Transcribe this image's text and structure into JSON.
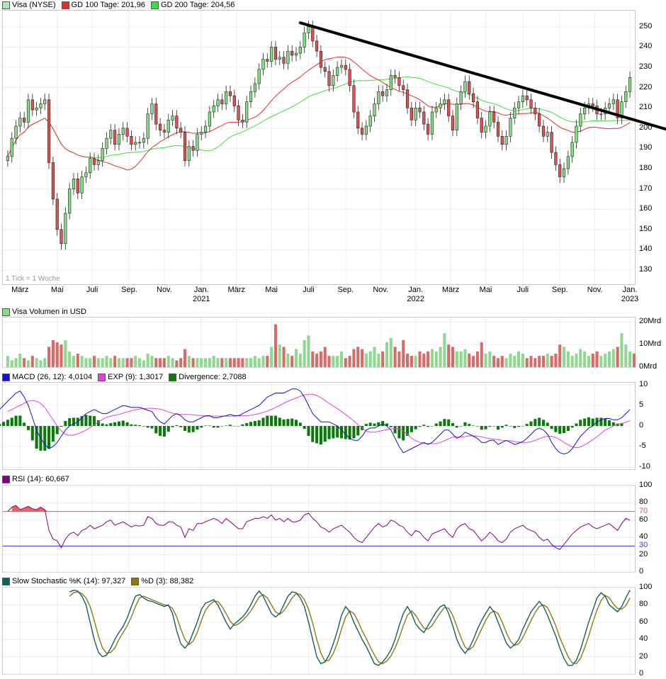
{
  "legends": {
    "price": [
      {
        "label": "Visa (NYSE)",
        "color": "#b4e6b4"
      },
      {
        "label": "GD 100 Tage: 201,96",
        "color": "#e03030"
      },
      {
        "label": "GD 200 Tage: 204,56",
        "color": "#3ce03c"
      }
    ],
    "volume": [
      {
        "label": "Visa Volumen in USD",
        "color": "#8fd88f"
      }
    ],
    "macd": [
      {
        "label": "MACD (26, 12): 4,0104",
        "color": "#1414c8"
      },
      {
        "label": "EXP (9): 1,3017",
        "color": "#e040e0"
      },
      {
        "label": "Divergence: 2,7088",
        "color": "#0a7a0a"
      }
    ],
    "rsi": [
      {
        "label": "RSI (14): 60,667",
        "color": "#800080"
      }
    ],
    "stoch": [
      {
        "label": "Slow Stochastic %K (14): 97,327",
        "color": "#106060"
      },
      {
        "label": "%D (3): 88,382",
        "color": "#8a7a10"
      }
    ]
  },
  "tick_note": "1 Tick = 1 Woche",
  "colors": {
    "up": "#7ee07e",
    "down": "#e05050",
    "ma100": "#e03030",
    "ma200": "#3ce03c",
    "trend": "#000000",
    "macd": "#1414c8",
    "exp": "#e040e0",
    "div": "#0a7a0a",
    "rsi": "#800080",
    "k": "#106060",
    "d": "#8a7a10",
    "vol_up": "#8fd88f",
    "vol_down": "#d86a6a",
    "line70": "#e05050",
    "line30": "#3030e0"
  },
  "chart_data": [
    {
      "id": "price",
      "type": "candlestick",
      "ylim": [
        123,
        258
      ],
      "y_ticks": [
        130,
        140,
        150,
        160,
        170,
        180,
        190,
        200,
        210,
        220,
        230,
        240,
        250
      ],
      "x_ticks": [
        {
          "label": "März",
          "week": 3
        },
        {
          "label": "Mai",
          "week": 12
        },
        {
          "label": "Juli",
          "week": 20.5
        },
        {
          "label": "Sep.",
          "week": 29.5
        },
        {
          "label": "Nov.",
          "week": 38
        },
        {
          "label": "Jan.",
          "sub": "2021",
          "week": 47
        },
        {
          "label": "März",
          "week": 55.5
        },
        {
          "label": "Mai",
          "week": 64
        },
        {
          "label": "Juli",
          "week": 73
        },
        {
          "label": "Sep.",
          "week": 82
        },
        {
          "label": "Nov.",
          "week": 90.5
        },
        {
          "label": "Jan.",
          "sub": "2022",
          "week": 99
        },
        {
          "label": "März",
          "week": 107.5
        },
        {
          "label": "Mai",
          "week": 116
        },
        {
          "label": "Juli",
          "week": 125
        },
        {
          "label": "Sep.",
          "week": 134
        },
        {
          "label": "Nov.",
          "week": 142.5
        },
        {
          "label": "Jan.",
          "sub": "2023",
          "week": 151
        }
      ],
      "closes": [
        186,
        195,
        201,
        205,
        203,
        214,
        209,
        210,
        212,
        214,
        183,
        165,
        150,
        143,
        158,
        170,
        175,
        168,
        176,
        178,
        185,
        182,
        184,
        190,
        195,
        199,
        192,
        197,
        200,
        196,
        192,
        193,
        193,
        195,
        207,
        212,
        202,
        199,
        198,
        204,
        206,
        200,
        198,
        184,
        191,
        189,
        197,
        198,
        201,
        208,
        211,
        214,
        212,
        218,
        216,
        211,
        204,
        203,
        213,
        218,
        222,
        229,
        234,
        233,
        240,
        234,
        235,
        232,
        238,
        236,
        237,
        240,
        247,
        250,
        243,
        238,
        230,
        228,
        221,
        226,
        230,
        231,
        229,
        221,
        208,
        200,
        197,
        201,
        206,
        212,
        218,
        216,
        219,
        226,
        225,
        221,
        219,
        210,
        204,
        210,
        208,
        202,
        197,
        208,
        210,
        212,
        214,
        206,
        199,
        212,
        218,
        223,
        217,
        213,
        205,
        198,
        201,
        208,
        203,
        196,
        192,
        196,
        205,
        210,
        213,
        216,
        214,
        210,
        207,
        201,
        196,
        198,
        188,
        182,
        176,
        180,
        186,
        193,
        201,
        207,
        210,
        212,
        211,
        207,
        207,
        210,
        212,
        214,
        205,
        213,
        218,
        225
      ]
    },
    {
      "id": "volume",
      "type": "bar",
      "unit": "Mrd",
      "ylim": [
        0,
        22
      ],
      "y_ticks": [
        {
          "v": 0,
          "label": "0Mrd"
        },
        {
          "v": 10,
          "label": "10Mrd"
        },
        {
          "v": 20,
          "label": "20Mrd"
        }
      ],
      "values": [
        5,
        3,
        4,
        6,
        4,
        3,
        5,
        4,
        3,
        4,
        9,
        12,
        11,
        10,
        12,
        7,
        5,
        6,
        5,
        4,
        4,
        5,
        4,
        4,
        5,
        4,
        5,
        4,
        4,
        4,
        4,
        5,
        4,
        3,
        6,
        5,
        4,
        4,
        4,
        5,
        4,
        3,
        4,
        8,
        5,
        4,
        4,
        4,
        4,
        4,
        5,
        4,
        4,
        4,
        4,
        4,
        4,
        4,
        4,
        4,
        5,
        4,
        5,
        5,
        9,
        19,
        10,
        9,
        6,
        5,
        8,
        6,
        12,
        14,
        7,
        6,
        7,
        9,
        5,
        5,
        5,
        7,
        4,
        5,
        8,
        9,
        8,
        6,
        7,
        9,
        6,
        7,
        11,
        13,
        9,
        7,
        12,
        6,
        5,
        5,
        7,
        6,
        7,
        8,
        7,
        9,
        15,
        10,
        9,
        7,
        7,
        8,
        6,
        5,
        7,
        11,
        6,
        7,
        5,
        4,
        5,
        4,
        6,
        5,
        7,
        6,
        4,
        5,
        4,
        5,
        5,
        6,
        5,
        6,
        10,
        9,
        7,
        5,
        6,
        8,
        7,
        5,
        6,
        7,
        5,
        6,
        7,
        8,
        9,
        15,
        10,
        7,
        6
      ]
    },
    {
      "id": "macd",
      "type": "line+bar",
      "ylim": [
        -10.5,
        10.5
      ],
      "y_ticks": [
        -10,
        -5,
        0,
        5,
        10
      ],
      "macd": [
        4,
        5,
        6,
        7,
        8,
        8.5,
        7,
        5,
        2,
        -1,
        -3,
        -4.5,
        -5.5,
        -5,
        -4,
        -2.5,
        -1,
        0,
        0.5,
        1,
        2,
        3,
        3.5,
        4,
        3.5,
        3,
        3,
        3.5,
        4,
        4.5,
        5,
        4.8,
        4.5,
        4.5,
        4.5,
        4.2,
        3.8,
        3.5,
        2,
        1,
        0.5,
        1.5,
        2.5,
        3,
        2.5,
        1.5,
        1,
        1,
        1.5,
        2,
        2.5,
        2.5,
        2,
        2,
        2.3,
        2.5,
        2.8,
        2.5,
        2.5,
        3,
        3.5,
        4,
        4.5,
        5,
        6,
        7,
        7.5,
        8,
        8,
        8,
        8.5,
        9,
        9,
        8.5,
        7,
        5,
        3,
        2,
        1,
        1,
        1,
        0.5,
        0,
        -1,
        -2,
        -3,
        -3.5,
        -3.5,
        -2.5,
        -1,
        -0.5,
        -0.5,
        0,
        0.5,
        0,
        -1,
        -3,
        -5,
        -6.5,
        -6,
        -5.5,
        -5,
        -4.5,
        -4,
        -4.5,
        -4,
        -3,
        -2,
        -1,
        -1,
        -2,
        -3,
        -2.5,
        -1.5,
        -2,
        -2.5,
        -3,
        -4,
        -4,
        -3.5,
        -3.5,
        -4.5,
        -4,
        -3.5,
        -4,
        -4.5,
        -4.2,
        -3.8,
        -3,
        -2,
        -1,
        -0.5,
        -1,
        -2,
        -4,
        -5.5,
        -6.5,
        -6.8,
        -6.5,
        -5.5,
        -4,
        -2.5,
        -1.5,
        -0.5,
        0,
        1,
        1.5,
        1.8,
        1.8,
        1.5,
        1.5,
        2,
        3,
        4
      ],
      "exp": [
        3.5,
        4,
        4.5,
        5,
        5.5,
        6,
        6.2,
        6,
        5.5,
        4.5,
        3,
        1.5,
        0,
        -1.2,
        -2,
        -2.3,
        -2.2,
        -1.9,
        -1.5,
        -1,
        -0.4,
        0.3,
        1,
        1.6,
        2.1,
        2.4,
        2.6,
        2.8,
        3.1,
        3.4,
        3.7,
        3.9,
        4.1,
        4.2,
        4.3,
        4.3,
        4.2,
        4.1,
        3.8,
        3.4,
        3.1,
        2.9,
        2.8,
        2.8,
        2.8,
        2.7,
        2.6,
        2.5,
        2.4,
        2.4,
        2.4,
        2.4,
        2.4,
        2.4,
        2.4,
        2.4,
        2.5,
        2.5,
        2.5,
        2.6,
        2.8,
        3,
        3.3,
        3.6,
        4,
        4.5,
        5,
        5.5,
        6,
        6.4,
        6.8,
        7.2,
        7.5,
        7.7,
        7.7,
        7.4,
        6.9,
        6.2,
        5.5,
        4.8,
        4.2,
        3.5,
        2.8,
        2,
        1.2,
        0.3,
        -0.5,
        -1.2,
        -1.5,
        -1.5,
        -1.3,
        -1.1,
        -0.9,
        -0.7,
        -0.6,
        -0.7,
        -1.2,
        -2,
        -3,
        -3.6,
        -4,
        -4.2,
        -4.3,
        -4.3,
        -4.3,
        -4,
        -3.6,
        -3.1,
        -2.7,
        -2.6,
        -2.7,
        -2.6,
        -2.4,
        -2.4,
        -2.5,
        -2.6,
        -2.9,
        -3.1,
        -3.2,
        -3.3,
        -3.5,
        -3.6,
        -3.6,
        -3.8,
        -3.9,
        -4,
        -4,
        -3.8,
        -3.5,
        -3.1,
        -2.7,
        -2.5,
        -2.5,
        -2.8,
        -3.3,
        -4,
        -4.6,
        -5.1,
        -5.3,
        -5.1,
        -4.6,
        -4,
        -3.3,
        -2.6,
        -1.8,
        -1,
        -0.5,
        0,
        0.4,
        0.6,
        0.9,
        1.3
      ]
    },
    {
      "id": "rsi",
      "type": "line",
      "ylim": [
        0,
        100
      ],
      "y_ticks": [
        0,
        20,
        30,
        40,
        60,
        70,
        80,
        100
      ],
      "values": [
        70,
        75,
        77,
        72,
        74,
        76,
        73,
        72,
        75,
        72,
        48,
        38,
        36,
        28,
        38,
        44,
        46,
        42,
        48,
        50,
        54,
        50,
        52,
        54,
        58,
        60,
        54,
        56,
        58,
        55,
        52,
        54,
        53,
        54,
        64,
        62,
        56,
        54,
        54,
        58,
        58,
        54,
        52,
        40,
        50,
        48,
        56,
        56,
        58,
        60,
        62,
        60,
        56,
        62,
        58,
        54,
        50,
        50,
        58,
        60,
        62,
        62,
        64,
        62,
        66,
        60,
        62,
        58,
        62,
        58,
        58,
        60,
        66,
        68,
        62,
        58,
        52,
        50,
        46,
        50,
        52,
        54,
        50,
        46,
        40,
        36,
        34,
        40,
        46,
        52,
        56,
        52,
        54,
        60,
        58,
        54,
        52,
        46,
        42,
        48,
        46,
        40,
        36,
        44,
        46,
        48,
        50,
        44,
        40,
        50,
        54,
        56,
        50,
        48,
        42,
        36,
        40,
        46,
        42,
        36,
        34,
        38,
        46,
        50,
        52,
        54,
        50,
        48,
        46,
        40,
        36,
        38,
        32,
        28,
        26,
        32,
        38,
        44,
        48,
        52,
        54,
        56,
        52,
        50,
        52,
        54,
        56,
        52,
        48,
        56,
        62,
        60
      ]
    },
    {
      "id": "stoch",
      "type": "line",
      "ylim": [
        0,
        100
      ],
      "y_ticks": [
        0,
        20,
        40,
        60,
        80,
        100
      ],
      "k": [
        95,
        97,
        96,
        90,
        80,
        60,
        40,
        25,
        20,
        22,
        30,
        40,
        48,
        55,
        65,
        78,
        90,
        92,
        88,
        85,
        84,
        82,
        80,
        78,
        80,
        70,
        50,
        35,
        30,
        36,
        48,
        60,
        75,
        82,
        84,
        86,
        80,
        70,
        60,
        52,
        58,
        62,
        66,
        72,
        80,
        90,
        96,
        90,
        80,
        70,
        66,
        70,
        80,
        90,
        95,
        94,
        88,
        78,
        60,
        40,
        20,
        12,
        14,
        22,
        35,
        50,
        68,
        78,
        72,
        60,
        50,
        40,
        32,
        22,
        12,
        10,
        14,
        20,
        28,
        40,
        56,
        70,
        78,
        70,
        58,
        52,
        48,
        56,
        64,
        72,
        78,
        80,
        70,
        56,
        40,
        30,
        24,
        30,
        40,
        52,
        62,
        70,
        78,
        72,
        60,
        48,
        36,
        30,
        34,
        40,
        52,
        62,
        72,
        78,
        84,
        78,
        68,
        56,
        44,
        30,
        18,
        10,
        10,
        16,
        28,
        44,
        60,
        74,
        88,
        94,
        90,
        80,
        76,
        72,
        78,
        88,
        97
      ],
      "d": [
        90,
        94,
        95,
        93,
        88,
        78,
        62,
        44,
        30,
        24,
        25,
        30,
        40,
        48,
        56,
        66,
        78,
        88,
        90,
        88,
        86,
        84,
        82,
        80,
        79,
        76,
        66,
        52,
        40,
        34,
        38,
        48,
        62,
        74,
        80,
        84,
        84,
        78,
        70,
        61,
        56,
        58,
        62,
        67,
        73,
        81,
        89,
        92,
        88,
        80,
        72,
        69,
        73,
        80,
        88,
        93,
        92,
        86,
        75,
        59,
        40,
        24,
        15,
        16,
        24,
        36,
        52,
        66,
        73,
        70,
        61,
        50,
        41,
        31,
        22,
        14,
        12,
        15,
        21,
        30,
        42,
        56,
        68,
        73,
        68,
        60,
        53,
        52,
        56,
        64,
        71,
        77,
        76,
        68,
        55,
        42,
        31,
        28,
        32,
        42,
        52,
        62,
        70,
        73,
        70,
        60,
        48,
        38,
        33,
        35,
        42,
        52,
        62,
        71,
        78,
        80,
        77,
        67,
        56,
        42,
        31,
        20,
        13,
        12,
        18,
        30,
        44,
        60,
        74,
        85,
        91,
        88,
        81,
        76,
        75,
        79,
        88
      ]
    }
  ]
}
